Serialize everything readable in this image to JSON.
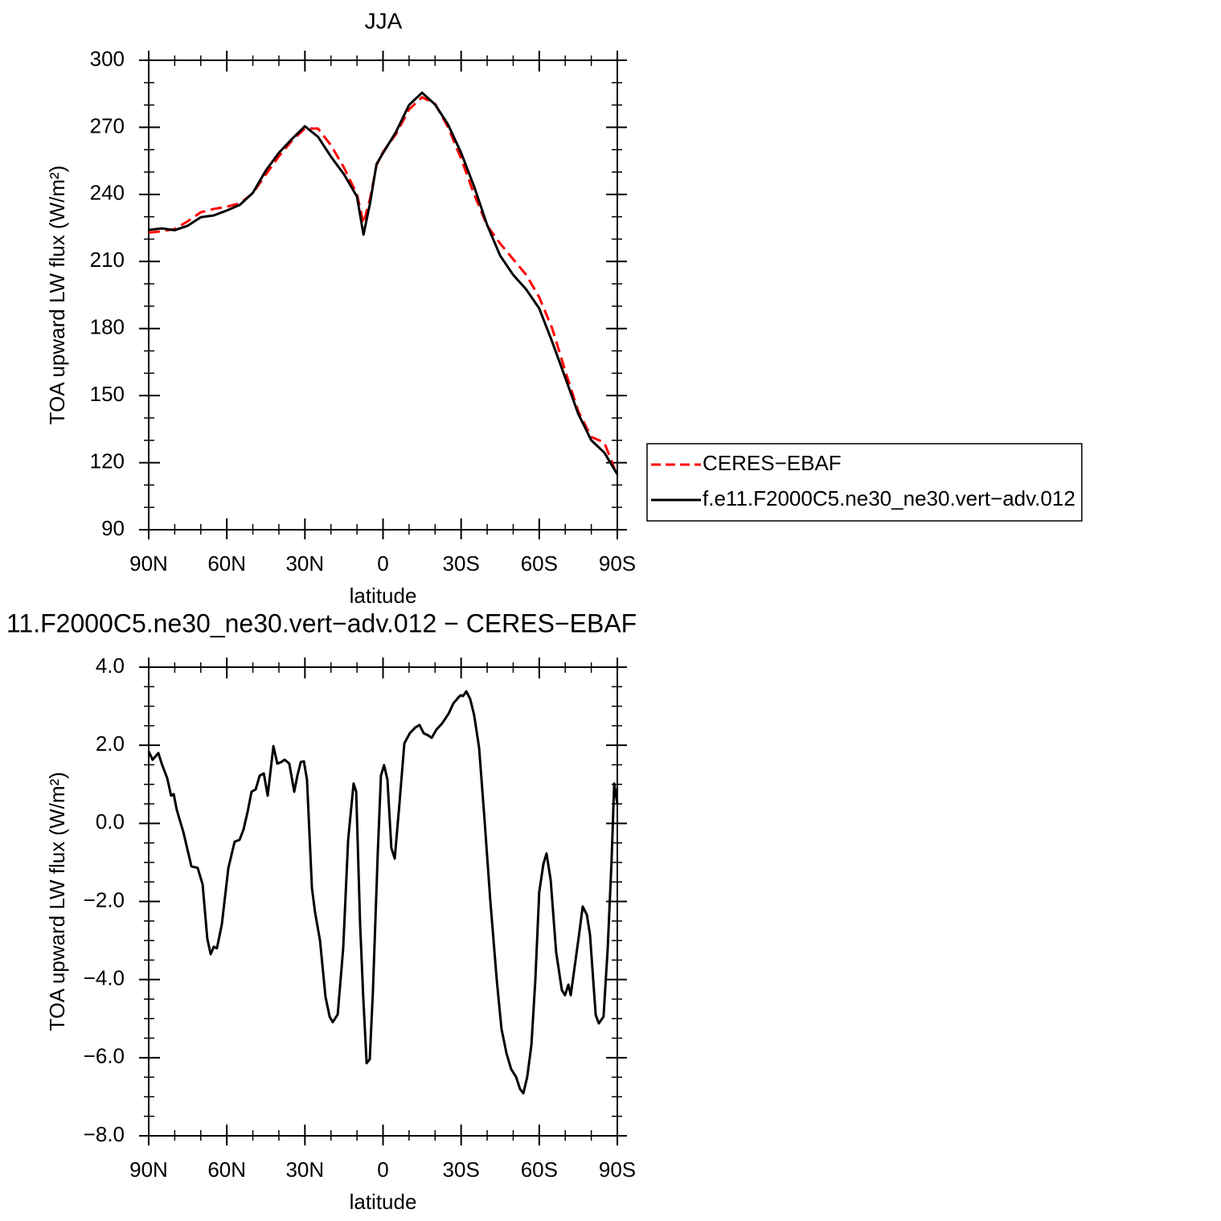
{
  "chart_data": [
    {
      "type": "line",
      "title": "JJA",
      "xlabel": "latitude",
      "ylabel": "TOA upward LW flux (W/m²)",
      "x": [
        90,
        85,
        80,
        75,
        70,
        65,
        60,
        55,
        50,
        45,
        40,
        35,
        30,
        25,
        20,
        15,
        10,
        7.5,
        5,
        2.5,
        0,
        -5,
        -10,
        -15,
        -20,
        -25,
        -30,
        -35,
        -40,
        -45,
        -50,
        -55,
        -60,
        -65,
        -70,
        -75,
        -80,
        -85,
        -90
      ],
      "series": [
        {
          "name": "CERES−EBAF",
          "color": "#ff0000",
          "dash": "dashed",
          "values": [
            222.9,
            223.5,
            224.5,
            228,
            232,
            233.5,
            234.5,
            236,
            240.5,
            249,
            257,
            264,
            269.5,
            269.5,
            262,
            252,
            240,
            227,
            238,
            253,
            259,
            267,
            278,
            283.5,
            280.5,
            270,
            256,
            240,
            226,
            218,
            211,
            204,
            194,
            180,
            161,
            143,
            131.5,
            129,
            114
          ]
        },
        {
          "name": "f.e11.F2000C5.ne30_ne30.vert−adv.012",
          "color": "#000000",
          "dash": "solid",
          "values": [
            224.1,
            224.8,
            224,
            226,
            229.8,
            230.6,
            232.8,
            235.3,
            240.7,
            250.7,
            258.6,
            264.8,
            270.5,
            265.8,
            256.9,
            249,
            239,
            222,
            236,
            253.5,
            258.5,
            268,
            280,
            285.5,
            280.2,
            271.2,
            258.6,
            243.5,
            226.3,
            212.6,
            204,
            197.5,
            189,
            174,
            158,
            141.8,
            130,
            124.5,
            114.8
          ]
        }
      ],
      "xlim": [
        90,
        -90
      ],
      "xticks": [
        {
          "value": 90,
          "label": "90N"
        },
        {
          "value": 60,
          "label": "60N"
        },
        {
          "value": 30,
          "label": "30N"
        },
        0,
        {
          "value": -30,
          "label": "30S"
        },
        {
          "value": -60,
          "label": "60S"
        },
        {
          "value": -90,
          "label": "90S"
        }
      ],
      "xminorticks": [
        80,
        70,
        50,
        40,
        20,
        10,
        -10,
        -20,
        -40,
        -50,
        -70,
        -80
      ],
      "ylim": [
        90,
        300
      ],
      "yticks": [
        90,
        120,
        150,
        180,
        210,
        240,
        270,
        300
      ],
      "yminorticks": [
        100,
        110,
        130,
        140,
        160,
        170,
        190,
        200,
        220,
        230,
        250,
        260,
        280,
        290
      ],
      "legend": "outside-right"
    },
    {
      "type": "line",
      "title": "11.F2000C5.ne30_ne30.vert−adv.012 − CERES−EBAF",
      "xlabel": "latitude",
      "ylabel": "TOA upward LW flux (W/m²)",
      "x": [
        90,
        88.5,
        86.3,
        84.8,
        82.9,
        81.4,
        80.4,
        79.2,
        76.7,
        73.6,
        71.2,
        69.3,
        67.5,
        66.2,
        65,
        63.8,
        61.9,
        59.4,
        57,
        55.1,
        53.6,
        52,
        50.5,
        48.9,
        47.4,
        45.8,
        44.3,
        42.1,
        40.6,
        39.1,
        37.8,
        36,
        34.1,
        32.9,
        31.6,
        30.4,
        29.2,
        27.3,
        26.1,
        24.2,
        22.1,
        20.5,
        19.3,
        17.4,
        15.3,
        13.4,
        11.3,
        10.3,
        8.8,
        7.6,
        6.3,
        5.1,
        3.9,
        2,
        0.8,
        -0.4,
        -1.7,
        -3.2,
        -4.5,
        -6.3,
        -8.2,
        -10.3,
        -12.5,
        -14,
        -15.6,
        -17.4,
        -18.7,
        -20.5,
        -22.7,
        -25.2,
        -27,
        -28.9,
        -29.8,
        -30.7,
        -32,
        -33.5,
        -35,
        -36.9,
        -39,
        -41.2,
        -43.7,
        -45.5,
        -47.4,
        -49.2,
        -51.1,
        -52.6,
        -53.9,
        -55.4,
        -57,
        -58.5,
        -60,
        -61.6,
        -62.8,
        -64.4,
        -66.5,
        -68.7,
        -69.9,
        -71.2,
        -72.1,
        -73.3,
        -75.2,
        -76.7,
        -78.3,
        -79.5,
        -81.7,
        -82.9,
        -84.7,
        -86.3,
        -87.8,
        -88.8,
        -90
      ],
      "values": [
        1.84,
        1.63,
        1.8,
        1.49,
        1.16,
        0.71,
        0.75,
        0.34,
        -0.22,
        -1.1,
        -1.14,
        -1.56,
        -2.95,
        -3.35,
        -3.16,
        -3.2,
        -2.58,
        -1.14,
        -0.47,
        -0.42,
        -0.16,
        0.3,
        0.81,
        0.87,
        1.22,
        1.28,
        0.71,
        1.98,
        1.53,
        1.57,
        1.63,
        1.53,
        0.81,
        1.22,
        1.57,
        1.59,
        1.12,
        -1.66,
        -2.28,
        -3,
        -4.44,
        -4.95,
        -5.09,
        -4.89,
        -3.2,
        -0.42,
        1.02,
        0.81,
        -2.58,
        -4.44,
        -6.14,
        -6.04,
        -4.33,
        -0.73,
        1.22,
        1.49,
        1.12,
        -0.63,
        -0.9,
        0.5,
        2.05,
        2.31,
        2.46,
        2.52,
        2.31,
        2.25,
        2.19,
        2.4,
        2.56,
        2.81,
        3.07,
        3.22,
        3.28,
        3.26,
        3.38,
        3.18,
        2.77,
        1.94,
        0.09,
        -1.97,
        -4.02,
        -5.26,
        -5.88,
        -6.29,
        -6.49,
        -6.8,
        -6.91,
        -6.49,
        -5.67,
        -4.02,
        -1.76,
        -1.04,
        -0.77,
        -1.45,
        -3.3,
        -4.27,
        -4.4,
        -4.13,
        -4.4,
        -3.82,
        -2.9,
        -2.13,
        -2.34,
        -2.85,
        -4.91,
        -5.12,
        -4.95,
        -3.2,
        -0.94,
        1.02,
        0.5
      ],
      "color": "#000000",
      "xlim": [
        90,
        -90
      ],
      "xticks": [
        {
          "value": 90,
          "label": "90N"
        },
        {
          "value": 60,
          "label": "60N"
        },
        {
          "value": 30,
          "label": "30N"
        },
        0,
        {
          "value": -30,
          "label": "30S"
        },
        {
          "value": -60,
          "label": "60S"
        },
        {
          "value": -90,
          "label": "90S"
        }
      ],
      "xminorticks": [
        80,
        70,
        50,
        40,
        20,
        10,
        -10,
        -20,
        -40,
        -50,
        -70,
        -80
      ],
      "ylim": [
        -8,
        4
      ],
      "yticks": [
        {
          "value": -8,
          "label": "−8.0"
        },
        {
          "value": -6,
          "label": "−6.0"
        },
        {
          "value": -4,
          "label": "−4.0"
        },
        {
          "value": -2,
          "label": "−2.0"
        },
        {
          "value": 0,
          "label": "0.0"
        },
        {
          "value": 2,
          "label": "2.0"
        },
        {
          "value": 4,
          "label": "4.0"
        }
      ],
      "yminorticks": [
        3.5,
        3,
        2.5,
        1.5,
        1,
        0.5,
        -0.5,
        -1,
        -1.5,
        -2.5,
        -3,
        -3.5,
        -4.5,
        -5,
        -5.5,
        -6.5,
        -7,
        -7.5
      ]
    }
  ]
}
